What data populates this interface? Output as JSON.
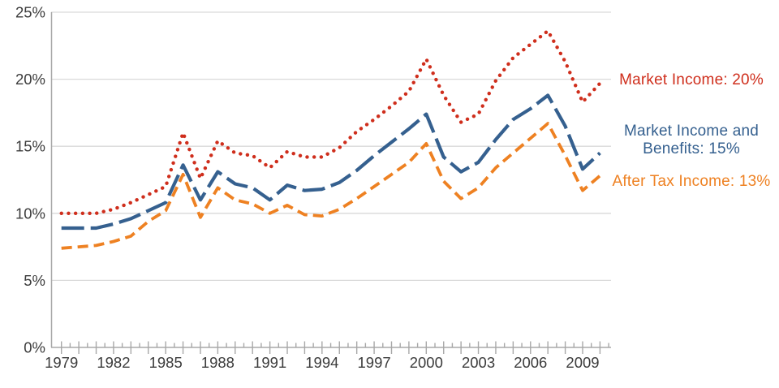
{
  "chart_data": {
    "type": "line",
    "title": "",
    "x": [
      1979,
      1980,
      1981,
      1982,
      1983,
      1984,
      1985,
      1986,
      1987,
      1988,
      1989,
      1990,
      1991,
      1992,
      1993,
      1994,
      1995,
      1996,
      1997,
      1998,
      1999,
      2000,
      2001,
      2002,
      2003,
      2004,
      2005,
      2006,
      2007,
      2008,
      2009,
      2010
    ],
    "x_tick_labels": [
      "1979",
      "1982",
      "1985",
      "1988",
      "1991",
      "1994",
      "1997",
      "2000",
      "2003",
      "2006",
      "2009"
    ],
    "x_tick_years": [
      1979,
      1982,
      1985,
      1988,
      1991,
      1994,
      1997,
      2000,
      2003,
      2006,
      2009
    ],
    "xlim": [
      1979,
      2010
    ],
    "y_ticks": [
      0,
      5,
      10,
      15,
      20,
      25
    ],
    "y_tick_labels": [
      "0%",
      "5%",
      "10%",
      "15%",
      "20%",
      "25%"
    ],
    "ylim": [
      0,
      25
    ],
    "grid": true,
    "legend_position": "right",
    "series": [
      {
        "name": "Market Income",
        "label": "Market Income: 20%",
        "end_value_label": "20%",
        "color": "#cf2e1c",
        "line_style": "dotted",
        "values": [
          10.0,
          10.0,
          10.0,
          10.3,
          10.8,
          11.4,
          12.0,
          16.0,
          12.6,
          15.4,
          14.5,
          14.3,
          13.4,
          14.6,
          14.2,
          14.2,
          14.9,
          16.1,
          17.0,
          18.0,
          19.1,
          21.5,
          18.8,
          16.8,
          17.4,
          19.9,
          21.6,
          22.6,
          23.6,
          21.3,
          18.3,
          19.7
        ]
      },
      {
        "name": "Market Income and Benefits",
        "label": "Market Income and Benefits: 15%",
        "end_value_label": "15%",
        "color": "#35608f",
        "line_style": "long-dash",
        "values": [
          8.9,
          8.9,
          8.9,
          9.2,
          9.6,
          10.2,
          10.8,
          13.6,
          11.0,
          13.1,
          12.2,
          11.9,
          11.0,
          12.1,
          11.7,
          11.8,
          12.3,
          13.2,
          14.3,
          15.3,
          16.3,
          17.4,
          14.2,
          13.1,
          13.8,
          15.5,
          17.0,
          17.8,
          18.8,
          16.5,
          13.3,
          14.5
        ]
      },
      {
        "name": "After Tax Income",
        "label": "After Tax Income: 13%",
        "end_value_label": "13%",
        "color": "#ee8122",
        "line_style": "dashed",
        "values": [
          7.4,
          7.5,
          7.6,
          7.9,
          8.3,
          9.4,
          10.2,
          12.9,
          9.7,
          11.9,
          11.0,
          10.7,
          10.0,
          10.6,
          9.9,
          9.8,
          10.3,
          11.1,
          12.0,
          12.9,
          13.8,
          15.2,
          12.4,
          11.1,
          11.9,
          13.4,
          14.5,
          15.6,
          16.7,
          14.3,
          11.7,
          12.8
        ]
      }
    ],
    "colors": {
      "axis": "#a8a8a8",
      "grid": "#d9d9d9",
      "tick_label": "#3c3c3c",
      "background": "#ffffff"
    }
  }
}
